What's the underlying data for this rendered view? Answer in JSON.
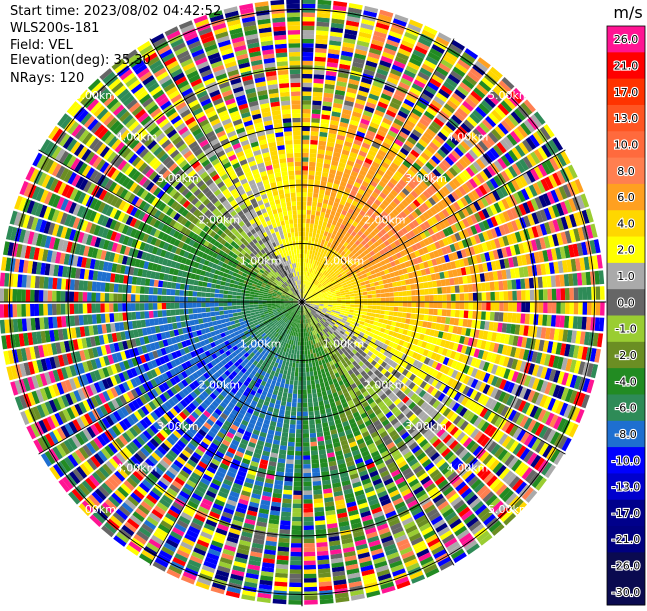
{
  "header": {
    "start_time": "Start time: 2023/08/02 04:42:52",
    "instrument": "WLS200s-181",
    "field": "Field: VEL",
    "elevation": "Elevation(deg): 35.30",
    "nrays": "NRays: 120"
  },
  "chart_data": {
    "type": "ppi-polar-heatmap",
    "field": "VEL",
    "units": "m/s",
    "num_rays": 120,
    "range_rings": [
      {
        "range_km": 1.0,
        "labels": [
          "1.00km",
          "1.00km",
          "1.00km",
          "1.00km"
        ]
      },
      {
        "range_km": 2.0,
        "labels": [
          "2.00km",
          "2.00km",
          "2.00km",
          "2.00km"
        ]
      },
      {
        "range_km": 3.0,
        "labels": [
          "3.00km",
          "3.00km",
          "3.00km",
          "3.00km"
        ]
      },
      {
        "range_km": 4.0,
        "labels": [
          "4.00km",
          "4.00km",
          "4.00km",
          "4.00km"
        ]
      },
      {
        "range_km": 5.0,
        "labels": [
          "5.00km",
          "5.00km",
          "5.00km",
          "5.00km"
        ]
      }
    ],
    "max_range_km": 5.2,
    "spoke_step_deg": 30,
    "colorbar": {
      "label": "m/s",
      "bins": [
        {
          "value": "26.0",
          "color": "#ff1493"
        },
        {
          "value": "21.0",
          "color": "#ff0000"
        },
        {
          "value": "17.0",
          "color": "#ff3300"
        },
        {
          "value": "13.0",
          "color": "#ff5522"
        },
        {
          "value": "10.0",
          "color": "#ff6a3d"
        },
        {
          "value": "8.0",
          "color": "#ff7f50"
        },
        {
          "value": "6.0",
          "color": "#ffa020"
        },
        {
          "value": "4.0",
          "color": "#ffd700"
        },
        {
          "value": "2.0",
          "color": "#ffff00"
        },
        {
          "value": "1.0",
          "color": "#aaaaaa"
        },
        {
          "value": "0.0",
          "color": "#666666"
        },
        {
          "value": "-1.0",
          "color": "#9acd32"
        },
        {
          "value": "-2.0",
          "color": "#6b8e23"
        },
        {
          "value": "-4.0",
          "color": "#228b22"
        },
        {
          "value": "-6.0",
          "color": "#2e8b57"
        },
        {
          "value": "-8.0",
          "color": "#1e6fd0"
        },
        {
          "value": "-10.0",
          "color": "#0000ff"
        },
        {
          "value": "-13.0",
          "color": "#0000cd"
        },
        {
          "value": "-17.0",
          "color": "#00008b"
        },
        {
          "value": "-21.0",
          "color": "#000080"
        },
        {
          "value": "-26.0",
          "color": "#0a0a50"
        },
        {
          "value": "-30.0",
          "color": "#0a0a50"
        }
      ]
    }
  }
}
